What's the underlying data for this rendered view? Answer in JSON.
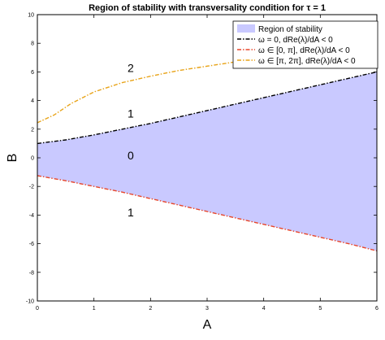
{
  "chart_data": {
    "type": "area",
    "title": "Region of stability with transversality condition for τ = 1",
    "xlabel": "A",
    "ylabel": "B",
    "xlim": [
      0,
      6
    ],
    "ylim": [
      -10,
      10
    ],
    "xticks": [
      "0",
      "1",
      "2",
      "3",
      "4",
      "5",
      "6"
    ],
    "yticks": [
      "-10",
      "-8",
      "-6",
      "-4",
      "-2",
      "0",
      "2",
      "4",
      "6",
      "8",
      "10"
    ],
    "grid": false,
    "legend_position": "top-right",
    "region": {
      "name": "Region of stability",
      "color": "#c9c9ff",
      "x": [
        0,
        0.5,
        1,
        1.5,
        2,
        2.5,
        3,
        3.5,
        4,
        4.5,
        5,
        5.5,
        6
      ],
      "upper": [
        1.0,
        1.25,
        1.6,
        2.0,
        2.4,
        2.85,
        3.3,
        3.75,
        4.2,
        4.65,
        5.1,
        5.55,
        6.0
      ],
      "lower": [
        -1.25,
        -1.6,
        -2.0,
        -2.4,
        -2.85,
        -3.3,
        -3.75,
        -4.2,
        -4.65,
        -5.1,
        -5.55,
        -6.0,
        -6.5
      ]
    },
    "series": [
      {
        "name": "ω = 0, dRe(λ)/dA < 0",
        "color": "#000000",
        "dash": "dashdot",
        "x": [
          0,
          0.5,
          1,
          1.5,
          2,
          2.5,
          3,
          3.5,
          4,
          4.5,
          5,
          5.5,
          6
        ],
        "y": [
          1.0,
          1.25,
          1.6,
          2.0,
          2.4,
          2.85,
          3.3,
          3.75,
          4.2,
          4.65,
          5.1,
          5.55,
          6.0
        ]
      },
      {
        "name": "ω ∈ [0, π], dRe(λ)/dA < 0",
        "color": "#e8462a",
        "dash": "dashdot",
        "x": [
          0,
          0.5,
          1,
          1.5,
          2,
          2.5,
          3,
          3.5,
          4,
          4.5,
          5,
          5.5,
          6
        ],
        "y": [
          -1.25,
          -1.6,
          -2.0,
          -2.4,
          -2.85,
          -3.3,
          -3.75,
          -4.2,
          -4.65,
          -5.1,
          -5.55,
          -6.0,
          -6.5
        ]
      },
      {
        "name": "ω ∈ [π, 2π], dRe(λ)/dA < 0",
        "color": "#e8a317",
        "dash": "dashdot",
        "x": [
          0,
          0.3,
          0.6,
          1,
          1.5,
          2,
          2.5,
          3,
          3.5,
          4,
          4.5,
          5,
          5.5,
          6
        ],
        "y": [
          2.45,
          3.0,
          3.8,
          4.6,
          5.25,
          5.7,
          6.1,
          6.4,
          6.7,
          7.0,
          7.3,
          7.55,
          7.8,
          8.1
        ]
      }
    ],
    "annotations": [
      {
        "text": "2",
        "x": 1.65,
        "y": 6.0
      },
      {
        "text": "1",
        "x": 1.65,
        "y": 2.8
      },
      {
        "text": "0",
        "x": 1.65,
        "y": -0.1
      },
      {
        "text": "1",
        "x": 1.65,
        "y": -4.1
      }
    ]
  }
}
